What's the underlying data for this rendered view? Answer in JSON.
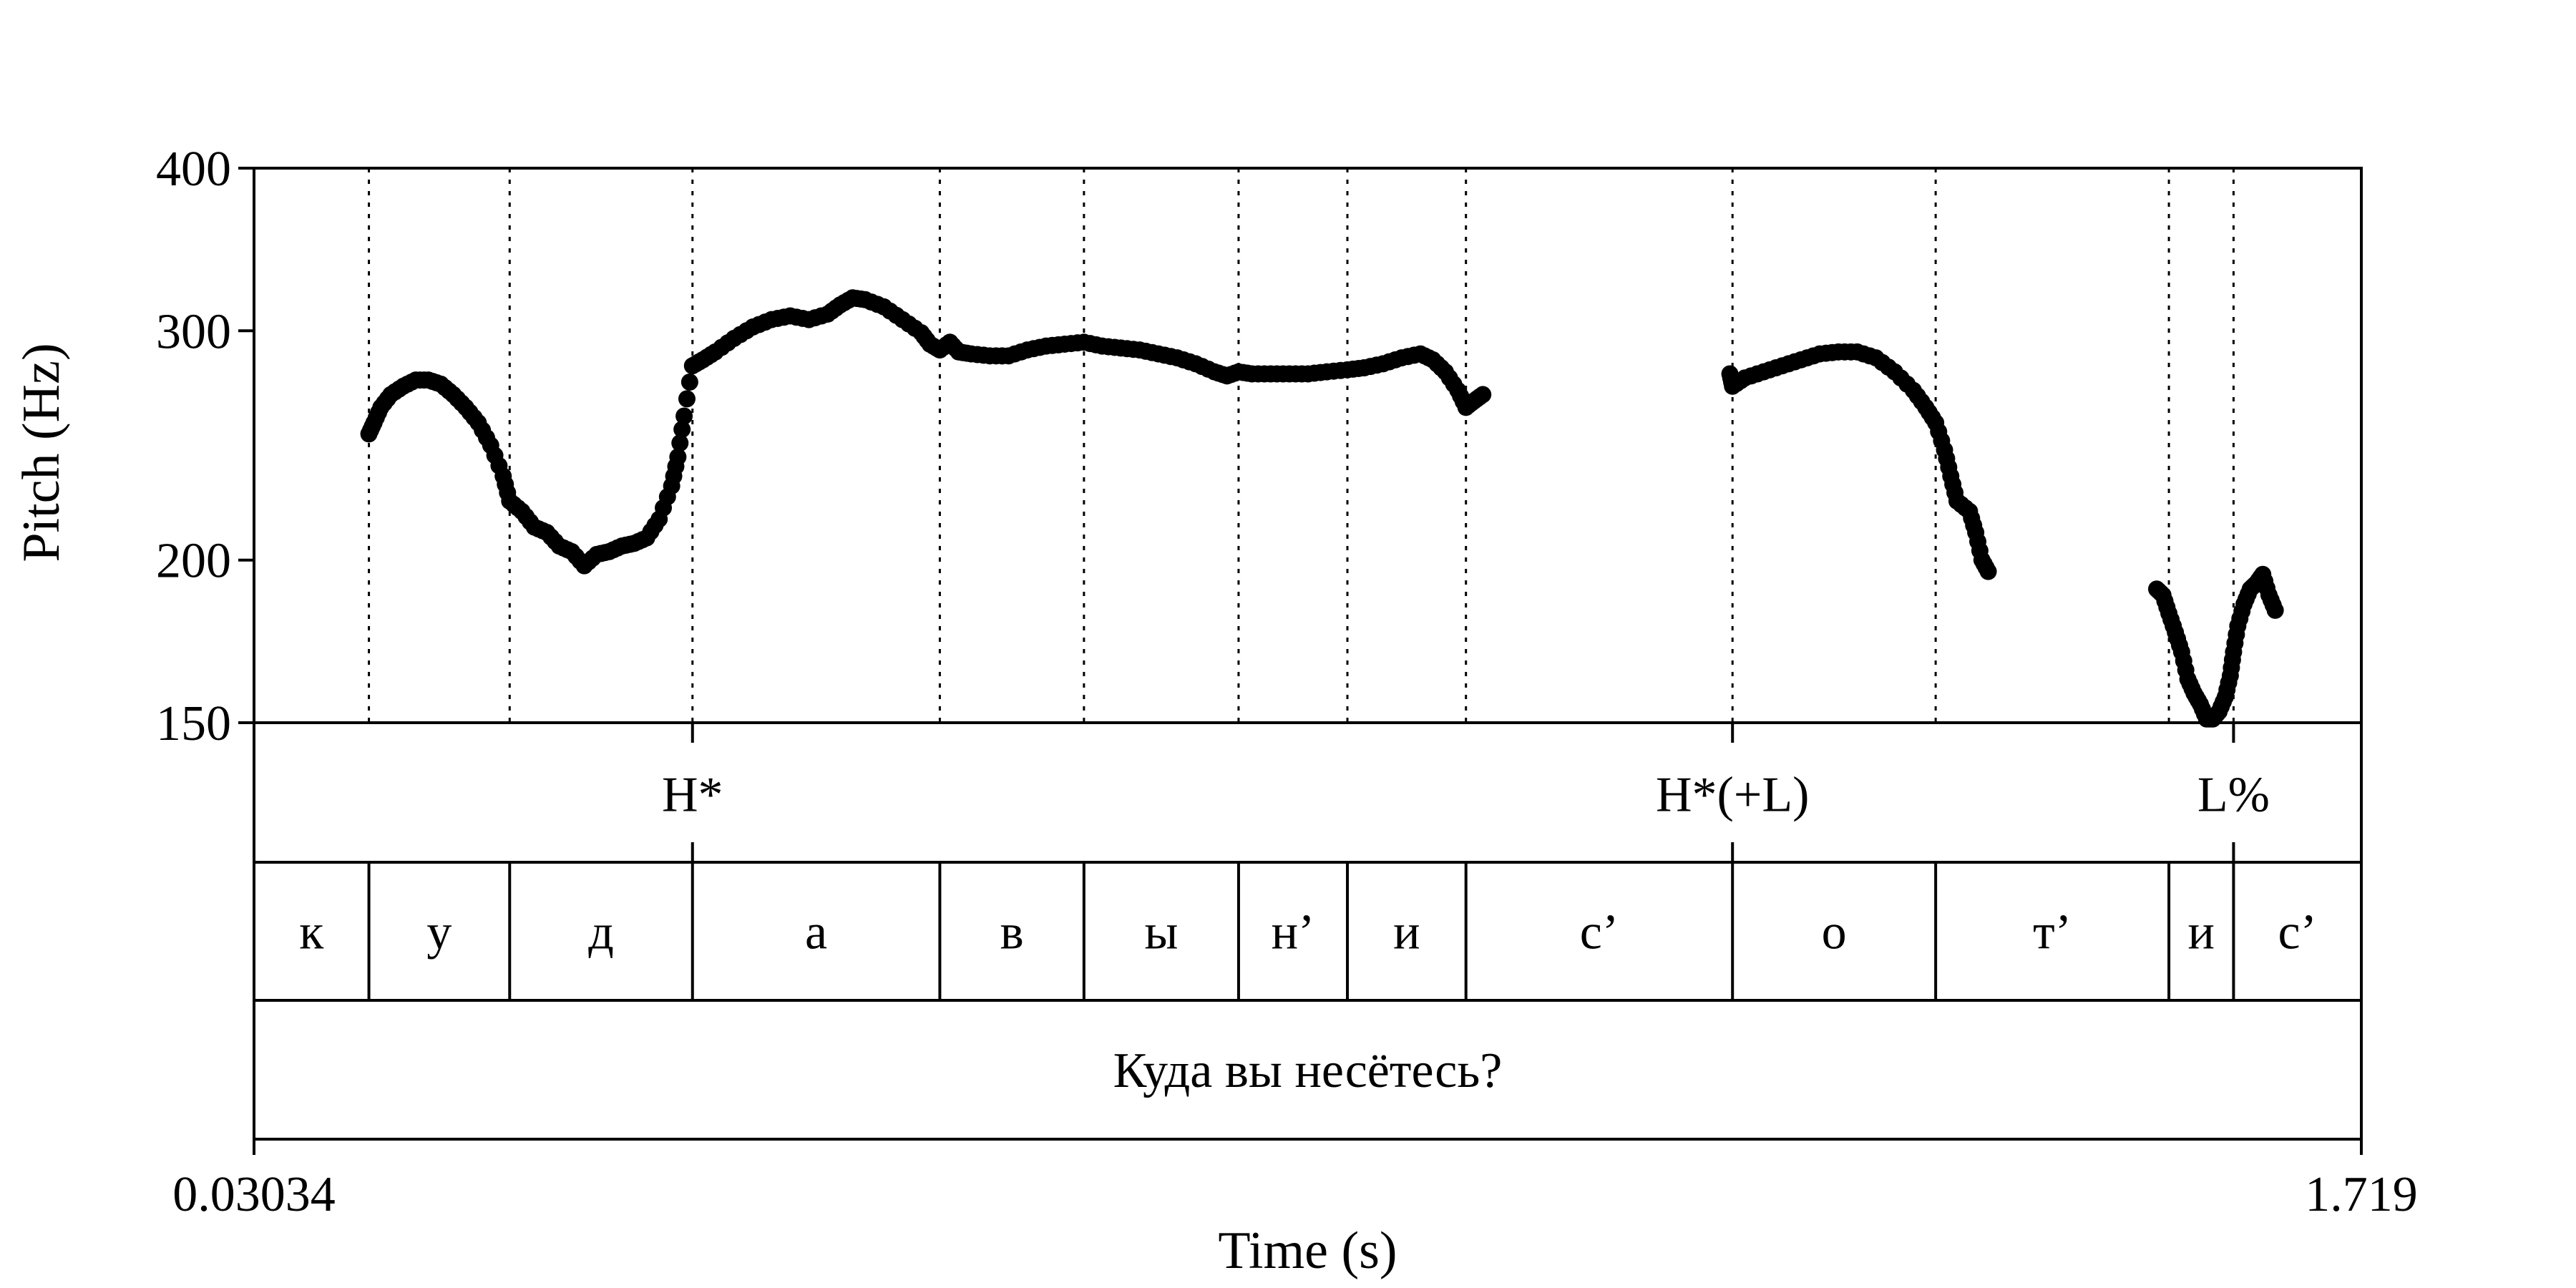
{
  "chart_data": {
    "type": "scatter",
    "ylabel": "Pitch (Hz)",
    "xlabel": "Time (s)",
    "x_range": [
      0.03034,
      1.719
    ],
    "x_tick_labels": [
      "0.03034",
      "1.719"
    ],
    "y_scale": "log",
    "ylim": [
      150,
      400
    ],
    "y_ticks": [
      150,
      200,
      300,
      400
    ],
    "y_tick_labels": [
      "150",
      "200",
      "300",
      "400"
    ],
    "grid": "vertical dotted lines at segment boundaries",
    "boundaries": [
      0.1224,
      0.2352,
      0.3817,
      0.5799,
      0.6954,
      0.8193,
      0.9065,
      1.0015,
      1.2151,
      1.3779,
      1.5648,
      1.6166
    ],
    "tones": [
      {
        "label": "H*",
        "time": 0.3817
      },
      {
        "label": "H*(+L)",
        "time": 1.2151
      },
      {
        "label": "L%",
        "time": 1.6166
      }
    ],
    "segments": [
      {
        "label": "к",
        "start": 0.03034,
        "end": 0.1224
      },
      {
        "label": "у",
        "start": 0.1224,
        "end": 0.2352
      },
      {
        "label": "д",
        "start": 0.2352,
        "end": 0.3817
      },
      {
        "label": "а",
        "start": 0.3817,
        "end": 0.5799
      },
      {
        "label": "в",
        "start": 0.5799,
        "end": 0.6954
      },
      {
        "label": "ы",
        "start": 0.6954,
        "end": 0.8193
      },
      {
        "label": "н’",
        "start": 0.8193,
        "end": 0.9065
      },
      {
        "label": "и",
        "start": 0.9065,
        "end": 1.0015
      },
      {
        "label": "с’",
        "start": 1.0015,
        "end": 1.2151
      },
      {
        "label": "о",
        "start": 1.2151,
        "end": 1.3779
      },
      {
        "label": "т’",
        "start": 1.3779,
        "end": 1.5648
      },
      {
        "label": "и",
        "start": 1.5648,
        "end": 1.6166
      },
      {
        "label": "с’",
        "start": 1.6166,
        "end": 1.719
      }
    ],
    "sentence": "Куда вы несётесь?",
    "pitch_contour": [
      [
        0.1224,
        250
      ],
      [
        0.1265,
        255
      ],
      [
        0.132,
        262
      ],
      [
        0.14,
        268
      ],
      [
        0.15,
        272
      ],
      [
        0.16,
        275
      ],
      [
        0.17,
        275
      ],
      [
        0.18,
        273
      ],
      [
        0.19,
        268
      ],
      [
        0.2,
        262
      ],
      [
        0.21,
        255
      ],
      [
        0.22,
        245
      ],
      [
        0.23,
        232
      ],
      [
        0.2352,
        222
      ],
      [
        0.245,
        218
      ],
      [
        0.255,
        212
      ],
      [
        0.265,
        210
      ],
      [
        0.275,
        205
      ],
      [
        0.285,
        203
      ],
      [
        0.295,
        198
      ],
      [
        0.305,
        202
      ],
      [
        0.315,
        203
      ],
      [
        0.325,
        205
      ],
      [
        0.335,
        206
      ],
      [
        0.345,
        208
      ],
      [
        0.355,
        215
      ],
      [
        0.365,
        228
      ],
      [
        0.37,
        240
      ],
      [
        0.375,
        258
      ],
      [
        0.3817,
        282
      ],
      [
        0.39,
        285
      ],
      [
        0.4,
        289
      ],
      [
        0.415,
        296
      ],
      [
        0.43,
        302
      ],
      [
        0.445,
        306
      ],
      [
        0.46,
        308
      ],
      [
        0.475,
        306
      ],
      [
        0.49,
        309
      ],
      [
        0.5,
        314
      ],
      [
        0.51,
        318
      ],
      [
        0.52,
        317
      ],
      [
        0.535,
        313
      ],
      [
        0.55,
        306
      ],
      [
        0.565,
        299
      ],
      [
        0.572,
        293
      ],
      [
        0.5799,
        290
      ],
      [
        0.588,
        294
      ],
      [
        0.595,
        289
      ],
      [
        0.605,
        288
      ],
      [
        0.62,
        287
      ],
      [
        0.635,
        287
      ],
      [
        0.65,
        290
      ],
      [
        0.665,
        292
      ],
      [
        0.68,
        293
      ],
      [
        0.6954,
        294
      ],
      [
        0.71,
        292
      ],
      [
        0.725,
        291
      ],
      [
        0.74,
        290
      ],
      [
        0.755,
        288
      ],
      [
        0.77,
        286
      ],
      [
        0.785,
        283
      ],
      [
        0.8,
        279
      ],
      [
        0.81,
        277
      ],
      [
        0.8193,
        279
      ],
      [
        0.83,
        278
      ],
      [
        0.845,
        278
      ],
      [
        0.86,
        278
      ],
      [
        0.875,
        278
      ],
      [
        0.89,
        279
      ],
      [
        0.9065,
        280
      ],
      [
        0.92,
        281
      ],
      [
        0.935,
        283
      ],
      [
        0.95,
        286
      ],
      [
        0.965,
        288
      ],
      [
        0.975,
        285
      ],
      [
        0.985,
        279
      ],
      [
        0.995,
        270
      ],
      [
        1.0015,
        262
      ],
      [
        1.008,
        265
      ],
      [
        1.015,
        268
      ],
      [
        1.213,
        278
      ],
      [
        1.2151,
        272
      ],
      [
        1.225,
        276
      ],
      [
        1.24,
        279
      ],
      [
        1.255,
        282
      ],
      [
        1.27,
        285
      ],
      [
        1.285,
        288
      ],
      [
        1.3,
        289
      ],
      [
        1.315,
        289
      ],
      [
        1.33,
        286
      ],
      [
        1.345,
        279
      ],
      [
        1.36,
        270
      ],
      [
        1.37,
        262
      ],
      [
        1.3779,
        255
      ],
      [
        1.385,
        243
      ],
      [
        1.39,
        232
      ],
      [
        1.395,
        222
      ],
      [
        1.405,
        218
      ],
      [
        1.41,
        210
      ],
      [
        1.415,
        200
      ],
      [
        1.42,
        196
      ],
      [
        1.555,
        190
      ],
      [
        1.56,
        188
      ],
      [
        1.5648,
        182
      ],
      [
        1.57,
        176
      ],
      [
        1.575,
        170
      ],
      [
        1.58,
        162
      ],
      [
        1.585,
        158
      ],
      [
        1.59,
        155
      ],
      [
        1.595,
        151
      ],
      [
        1.6,
        151
      ],
      [
        1.605,
        153
      ],
      [
        1.61,
        157
      ],
      [
        1.614,
        163
      ],
      [
        1.6166,
        170
      ],
      [
        1.62,
        178
      ],
      [
        1.625,
        185
      ],
      [
        1.63,
        190
      ],
      [
        1.635,
        192
      ],
      [
        1.64,
        195
      ],
      [
        1.645,
        188
      ],
      [
        1.65,
        183
      ]
    ]
  }
}
